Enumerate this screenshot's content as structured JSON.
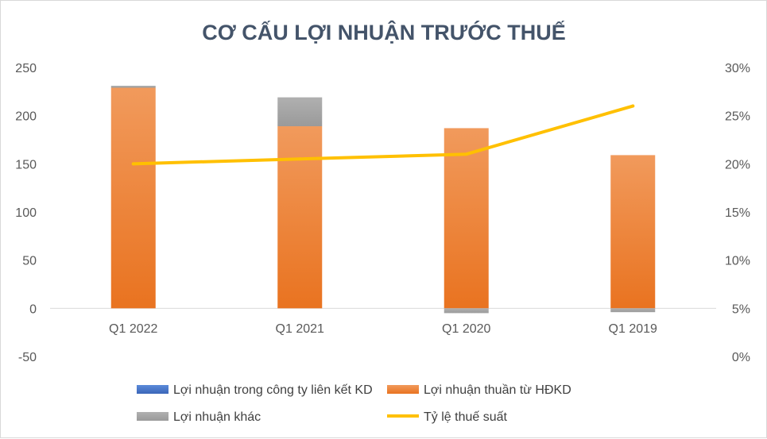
{
  "chart_data": {
    "type": "bar",
    "title": "CƠ CẤU LỢI NHUẬN TRƯỚC THUẾ",
    "categories": [
      "Q1 2022",
      "Q1 2021",
      "Q1 2020",
      "Q1 2019"
    ],
    "stacked": true,
    "ylim": [
      -50,
      250
    ],
    "yticks": [
      "250",
      "200",
      "150",
      "100",
      "50",
      "0",
      "-50"
    ],
    "y2lim": [
      0,
      0.3
    ],
    "y2ticks": [
      "30%",
      "25%",
      "20%",
      "15%",
      "10%",
      "5%",
      "0%"
    ],
    "series": [
      {
        "name": "Lợi nhuận trong công ty liên kết KD",
        "type": "bar",
        "axis": "left",
        "color": "#4472c4",
        "values": [
          0,
          0,
          0,
          0
        ]
      },
      {
        "name": "Lợi nhuận thuần từ HĐKD",
        "type": "bar",
        "axis": "left",
        "color": "#ed7d31",
        "values": [
          229,
          189,
          187,
          159
        ]
      },
      {
        "name": "Lợi nhuận khác",
        "type": "bar",
        "axis": "left",
        "color": "#a5a5a5",
        "values": [
          2,
          30,
          -5,
          -4
        ]
      },
      {
        "name": "Tỷ lệ thuế suất",
        "type": "line",
        "axis": "right",
        "color": "#ffc000",
        "values": [
          0.2,
          0.205,
          0.21,
          0.26
        ]
      }
    ],
    "legend_position": "bottom",
    "grid": false
  }
}
